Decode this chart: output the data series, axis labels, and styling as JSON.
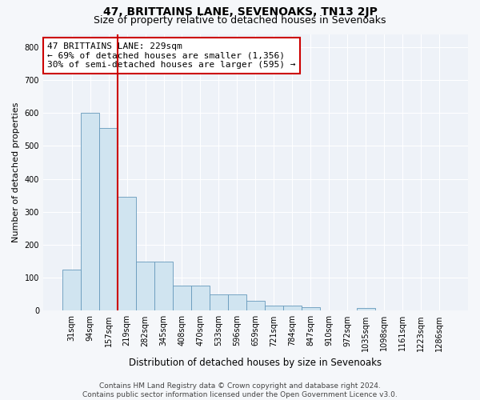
{
  "title": "47, BRITTAINS LANE, SEVENOAKS, TN13 2JP",
  "subtitle": "Size of property relative to detached houses in Sevenoaks",
  "xlabel": "Distribution of detached houses by size in Sevenoaks",
  "ylabel": "Number of detached properties",
  "categories": [
    "31sqm",
    "94sqm",
    "157sqm",
    "219sqm",
    "282sqm",
    "345sqm",
    "408sqm",
    "470sqm",
    "533sqm",
    "596sqm",
    "659sqm",
    "721sqm",
    "784sqm",
    "847sqm",
    "910sqm",
    "972sqm",
    "1035sqm",
    "1098sqm",
    "1161sqm",
    "1223sqm",
    "1286sqm"
  ],
  "values": [
    125,
    600,
    555,
    345,
    148,
    148,
    75,
    75,
    50,
    50,
    30,
    15,
    15,
    10,
    0,
    0,
    8,
    0,
    0,
    0,
    0
  ],
  "bar_color": "#d0e4f0",
  "bar_edge_color": "#6699bb",
  "vline_index": 3,
  "vline_color": "#cc0000",
  "annotation_text": "47 BRITTAINS LANE: 229sqm\n← 69% of detached houses are smaller (1,356)\n30% of semi-detached houses are larger (595) →",
  "annotation_box_color": "white",
  "annotation_box_edge": "#cc0000",
  "ylim": [
    0,
    840
  ],
  "yticks": [
    0,
    100,
    200,
    300,
    400,
    500,
    600,
    700,
    800
  ],
  "footer_line1": "Contains HM Land Registry data © Crown copyright and database right 2024.",
  "footer_line2": "Contains public sector information licensed under the Open Government Licence v3.0.",
  "fig_bg_color": "#f5f7fa",
  "plot_bg_color": "#eef2f8",
  "grid_color": "white",
  "title_fontsize": 10,
  "subtitle_fontsize": 9,
  "ylabel_fontsize": 8,
  "xlabel_fontsize": 8.5,
  "tick_fontsize": 7,
  "annotation_fontsize": 8,
  "footer_fontsize": 6.5
}
